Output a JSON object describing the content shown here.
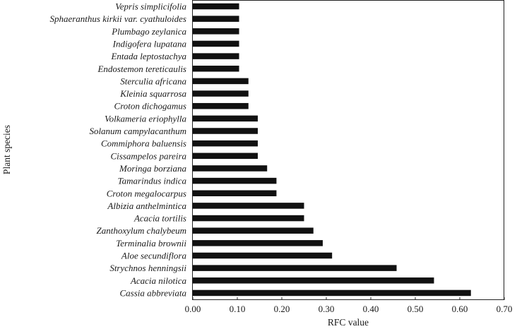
{
  "chart_data": {
    "type": "bar",
    "orientation": "horizontal",
    "xlabel": "RFC value",
    "ylabel": "Plant species",
    "xlim": [
      0,
      0.7
    ],
    "xticks": [
      "0.00",
      "0.10",
      "0.20",
      "0.30",
      "0.40",
      "0.50",
      "0.60",
      "0.70"
    ],
    "grid": false,
    "categories": [
      "Vepris simplicifolia",
      "Sphaeranthus kirkii var. cyathuloides",
      "Plumbago zeylanica",
      "Indigofera lupatana",
      "Entada leptostachya",
      "Endostemon tereticaulis",
      "Sterculia africana",
      "Kleinia squarrosa",
      "Croton dichogamus",
      "Volkameria eriophylla",
      "Solanum campylacanthum",
      "Commiphora baluensis",
      "Cissampelos pareira",
      "Moringa borziana",
      "Tamarindus indica",
      "Croton megalocarpus",
      "Albizia anthelmintica",
      "Acacia tortilis",
      "Zanthoxylum chalybeum",
      "Terminalia brownii",
      "Aloe secundiflora",
      "Strychnos henningsii",
      "Acacia nilotica",
      "Cassia abbreviata"
    ],
    "values": [
      0.104,
      0.104,
      0.104,
      0.104,
      0.104,
      0.104,
      0.125,
      0.125,
      0.125,
      0.146,
      0.146,
      0.146,
      0.146,
      0.167,
      0.188,
      0.188,
      0.25,
      0.25,
      0.271,
      0.292,
      0.313,
      0.458,
      0.542,
      0.625
    ]
  }
}
